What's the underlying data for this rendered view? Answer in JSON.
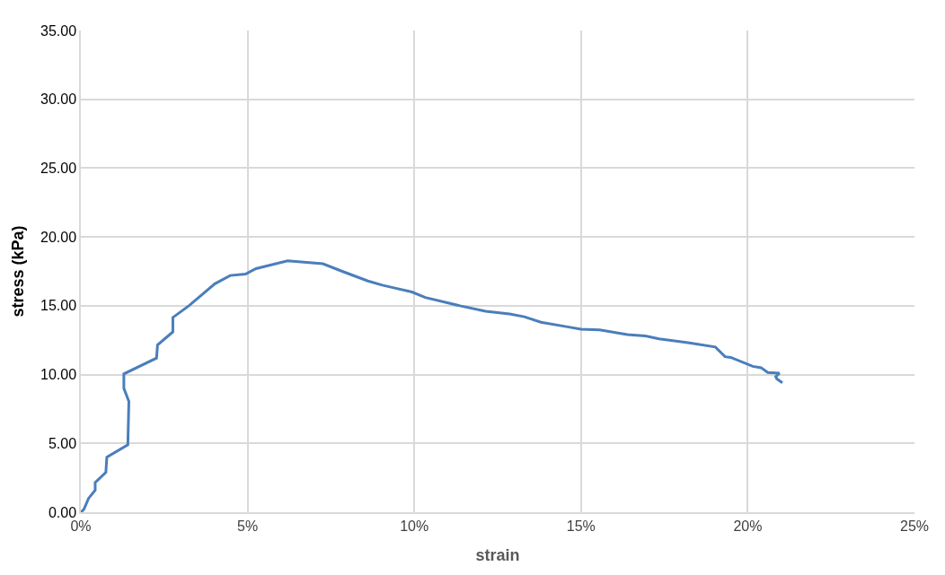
{
  "chart_data": {
    "type": "line",
    "xlabel": "strain",
    "ylabel": "stress (kPa)",
    "xlim": [
      0,
      0.25
    ],
    "xticks": [
      {
        "value": 0,
        "label": "0%"
      },
      {
        "value": 0.05,
        "label": "5%"
      },
      {
        "value": 0.1,
        "label": "10%"
      },
      {
        "value": 0.15,
        "label": "15%"
      },
      {
        "value": 0.2,
        "label": "20%"
      },
      {
        "value": 0.25,
        "label": "25%"
      }
    ],
    "ylim": [
      0,
      35
    ],
    "yticks": [
      {
        "value": 0,
        "label": "0.00"
      },
      {
        "value": 5,
        "label": "5.00"
      },
      {
        "value": 10,
        "label": "10.00"
      },
      {
        "value": 15,
        "label": "15.00"
      },
      {
        "value": 20,
        "label": "20.00"
      },
      {
        "value": 25,
        "label": "25.00"
      },
      {
        "value": 30,
        "label": "30.00"
      },
      {
        "value": 35,
        "label": "35.00"
      }
    ],
    "grid": true,
    "marker": "none",
    "line_style": "solid",
    "series": [
      {
        "color": "#4a7ebb",
        "x": [
          0,
          0.0009,
          0.0023,
          0.0043,
          0.0043,
          0.0075,
          0.0078,
          0.0141,
          0.0144,
          0.0129,
          0.0129,
          0.0227,
          0.023,
          0.0276,
          0.0276,
          0.0324,
          0.0402,
          0.0448,
          0.0494,
          0.0525,
          0.062,
          0.0726,
          0.0784,
          0.0861,
          0.0904,
          0.0939,
          0.0993,
          0.1033,
          0.1137,
          0.1214,
          0.1286,
          0.133,
          0.138,
          0.1452,
          0.15,
          0.1556,
          0.1639,
          0.1693,
          0.1734,
          0.1825,
          0.1903,
          0.1932,
          0.1949,
          0.2015,
          0.204,
          0.206,
          0.2095,
          0.2084,
          0.2087,
          0.2104
        ],
        "values": [
          0,
          0.2,
          1.0,
          1.6,
          2.15,
          2.9,
          4.0,
          4.9,
          8.05,
          9.0,
          10.05,
          11.2,
          12.15,
          13.1,
          14.15,
          15.0,
          16.6,
          17.2,
          17.3,
          17.7,
          18.26,
          18.05,
          17.5,
          16.8,
          16.5,
          16.3,
          16.0,
          15.6,
          15.0,
          14.6,
          14.4,
          14.2,
          13.8,
          13.5,
          13.3,
          13.25,
          12.9,
          12.8,
          12.6,
          12.3,
          12.0,
          11.3,
          11.25,
          10.6,
          10.5,
          10.15,
          10.1,
          9.85,
          9.7,
          9.4
        ]
      }
    ]
  }
}
